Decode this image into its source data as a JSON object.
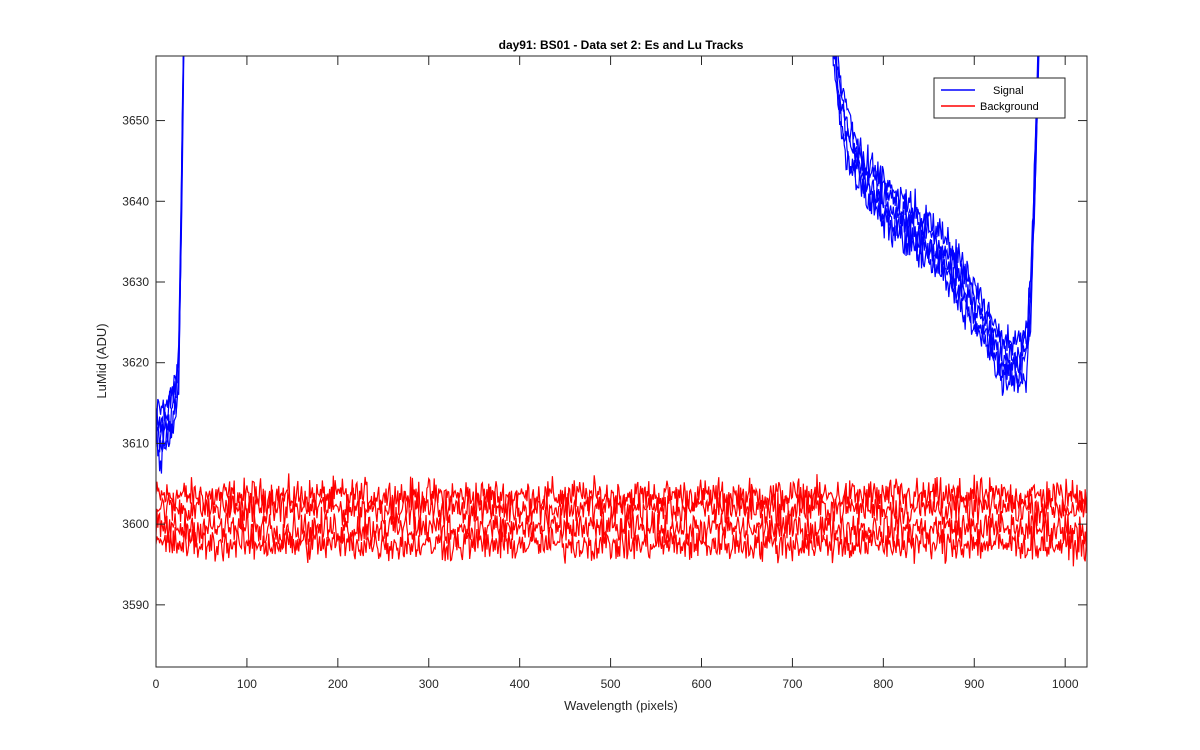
{
  "chart_data": {
    "type": "line",
    "title": "day91: BS01 - Data set 2: Es and Lu Tracks",
    "xlabel": "Wavelength (pixels)",
    "ylabel": "LuMid (ADU)",
    "xlim": [
      0,
      1024
    ],
    "ylim": [
      3582.3,
      3658
    ],
    "x_ticks": [
      0,
      100,
      200,
      300,
      400,
      500,
      600,
      700,
      800,
      900,
      1000
    ],
    "y_ticks": [
      3590,
      3600,
      3610,
      3620,
      3630,
      3640,
      3650
    ],
    "grid": false,
    "legend_position": "top-right",
    "colors": {
      "signal": "#0000ff",
      "background": "#ff0000",
      "axes": "#262626"
    },
    "series": [
      {
        "name": "Signal",
        "color": "#0000ff",
        "traces": 5,
        "noise_amplitude": 1.6,
        "segments": [
          {
            "x": [
              0,
              5,
              12,
              18,
              22,
              25,
              27,
              29,
              31
            ],
            "y": [
              3612,
              3611,
              3612,
              3614,
              3616,
              3620,
              3632,
              3648,
              3665
            ]
          },
          {
            "x": [
              742,
              750,
              760,
              780,
              800,
              820,
              840,
              860,
              880,
              900,
              920,
              935,
              950,
              958,
              962,
              966,
              969,
              972
            ],
            "y": [
              3665,
              3654,
              3648,
              3643,
              3640,
              3638,
              3636,
              3634,
              3631,
              3627,
              3623,
              3620,
              3620,
              3622,
              3628,
              3640,
              3652,
              3665
            ]
          }
        ]
      },
      {
        "name": "Background",
        "color": "#ff0000",
        "traces": 4,
        "noise_amplitude": 1.6,
        "levels": [
          3603.5,
          3602.0,
          3599.5,
          3597.5
        ],
        "x": [
          0,
          1024
        ]
      }
    ]
  }
}
